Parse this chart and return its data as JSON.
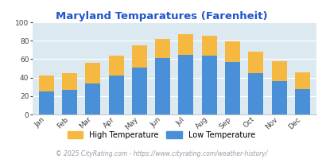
{
  "title": "Maryland Temparatures (Farenheit)",
  "months": [
    "Jan",
    "Feb",
    "Mar",
    "Apr",
    "May",
    "Jun",
    "Jul",
    "Aug",
    "Sep",
    "Oct",
    "Nov",
    "Dec"
  ],
  "low_temps": [
    25,
    27,
    34,
    42,
    51,
    61,
    65,
    64,
    57,
    45,
    36,
    28
  ],
  "high_temps": [
    42,
    45,
    56,
    64,
    75,
    82,
    87,
    85,
    79,
    68,
    58,
    46
  ],
  "bar_color_low": "#4a90d9",
  "bar_color_high": "#f5b942",
  "background_color": "#ffffff",
  "plot_bg_color": "#dce9f0",
  "title_color": "#2255cc",
  "tick_color": "#444444",
  "legend_label_high": "High Temperature",
  "legend_label_low": "Low Temperature",
  "footer_text": "© 2025 CityRating.com - https://www.cityrating.com/weather-history/",
  "ylim": [
    0,
    100
  ],
  "yticks": [
    0,
    20,
    40,
    60,
    80,
    100
  ]
}
